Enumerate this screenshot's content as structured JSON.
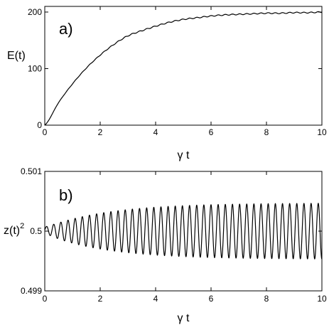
{
  "chart_data": [
    {
      "type": "line",
      "panel_label": "a)",
      "xlabel": "γ t",
      "ylabel": "E(t)",
      "xlim": [
        0,
        10
      ],
      "ylim": [
        0,
        210
      ],
      "x_ticks": [
        0,
        2,
        4,
        6,
        8,
        10
      ],
      "y_ticks": [
        0,
        100,
        200
      ],
      "x_tick_labels": [
        "0",
        "2",
        "4",
        "6",
        "8",
        "10"
      ],
      "y_tick_labels": [
        "0",
        "100",
        "200"
      ],
      "grid": false,
      "line_color": "#000000",
      "series": [
        {
          "x": [
            0,
            0.5,
            1,
            1.5,
            2,
            2.5,
            3,
            3.5,
            4,
            4.5,
            5,
            5.5,
            6,
            6.5,
            7,
            7.5,
            8,
            8.5,
            9,
            9.5,
            10
          ],
          "values": [
            0,
            40,
            73,
            101,
            124,
            143,
            158,
            167,
            175,
            182,
            187,
            190,
            193,
            195,
            196,
            197,
            198,
            198,
            199,
            199,
            200
          ]
        }
      ]
    },
    {
      "type": "line",
      "panel_label": "b)",
      "xlabel": "γ t",
      "ylabel": "z(t)",
      "ylabel_superscript": "2",
      "xlim": [
        0,
        10
      ],
      "ylim": [
        0.499,
        0.501
      ],
      "x_ticks": [
        0,
        2,
        4,
        6,
        8,
        10
      ],
      "y_ticks": [
        0.499,
        0.5,
        0.501
      ],
      "x_tick_labels": [
        "0",
        "2",
        "4",
        "6",
        "8",
        "10"
      ],
      "y_tick_labels": [
        "0.499",
        "0.5",
        "0.501"
      ],
      "grid": false,
      "line_color": "#000000",
      "series": [
        {
          "baseline": 0.5,
          "start_value": 0.50002,
          "oscillation_period": 0.258,
          "amplitude_start": 5e-05,
          "amplitude_end": 0.00047,
          "amplitude_growth_rate": 0.45,
          "x_range": [
            0,
            10
          ]
        }
      ]
    }
  ]
}
